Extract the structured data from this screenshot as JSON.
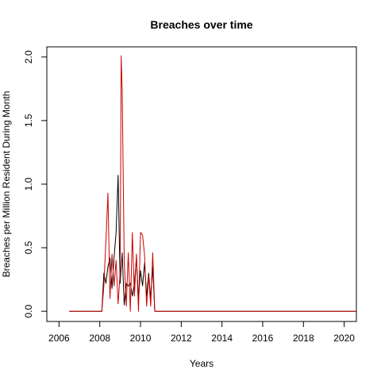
{
  "chart_data": {
    "type": "line",
    "title": "Breaches over time",
    "xlabel": "Years",
    "ylabel": "Breaches per Million Resident During Month",
    "xlim": [
      2005.4,
      2020.6
    ],
    "ylim": [
      -0.08,
      2.08
    ],
    "x_ticks": [
      2006,
      2008,
      2010,
      2012,
      2014,
      2016,
      2018,
      2020
    ],
    "x_tick_labels": [
      "2006",
      "2008",
      "2010",
      "2012",
      "2014",
      "2016",
      "2018",
      "2020"
    ],
    "y_ticks": [
      0.0,
      0.5,
      1.0,
      1.5,
      2.0
    ],
    "y_tick_labels": [
      "0.0",
      "0.5",
      "1.0",
      "1.5",
      "2.0"
    ],
    "grid": false,
    "series": [
      {
        "color": "#000000",
        "points": [
          [
            2006.5,
            0.0
          ],
          [
            2008.1,
            0.0
          ],
          [
            2008.2,
            0.3
          ],
          [
            2008.3,
            0.22
          ],
          [
            2008.4,
            0.35
          ],
          [
            2008.5,
            0.42
          ],
          [
            2008.6,
            0.18
          ],
          [
            2008.7,
            0.42
          ],
          [
            2008.8,
            0.62
          ],
          [
            2008.9,
            1.07
          ],
          [
            2009.0,
            0.22
          ],
          [
            2009.1,
            0.46
          ],
          [
            2009.2,
            0.05
          ],
          [
            2009.3,
            0.22
          ],
          [
            2009.4,
            0.2
          ],
          [
            2009.5,
            0.22
          ],
          [
            2009.6,
            0.12
          ],
          [
            2009.7,
            0.22
          ],
          [
            2009.8,
            0.42
          ],
          [
            2009.9,
            0.1
          ],
          [
            2010.0,
            0.32
          ],
          [
            2010.1,
            0.2
          ],
          [
            2010.2,
            0.38
          ],
          [
            2010.3,
            0.12
          ],
          [
            2010.4,
            0.3
          ],
          [
            2010.5,
            0.1
          ],
          [
            2010.6,
            0.35
          ],
          [
            2010.7,
            0.0
          ],
          [
            2020.6,
            0.0
          ]
        ]
      },
      {
        "color": "#cc0000",
        "points": [
          [
            2006.5,
            0.0
          ],
          [
            2008.1,
            0.0
          ],
          [
            2008.2,
            0.2
          ],
          [
            2008.3,
            0.55
          ],
          [
            2008.4,
            0.93
          ],
          [
            2008.5,
            0.1
          ],
          [
            2008.6,
            0.45
          ],
          [
            2008.7,
            0.2
          ],
          [
            2008.8,
            0.4
          ],
          [
            2008.9,
            0.06
          ],
          [
            2009.0,
            0.3
          ],
          [
            2009.05,
            2.01
          ],
          [
            2009.1,
            1.75
          ],
          [
            2009.2,
            0.4
          ],
          [
            2009.3,
            0.04
          ],
          [
            2009.4,
            0.46
          ],
          [
            2009.5,
            0.0
          ],
          [
            2009.6,
            0.62
          ],
          [
            2009.7,
            0.12
          ],
          [
            2009.8,
            0.45
          ],
          [
            2009.9,
            0.0
          ],
          [
            2010.0,
            0.62
          ],
          [
            2010.1,
            0.6
          ],
          [
            2010.2,
            0.44
          ],
          [
            2010.3,
            0.04
          ],
          [
            2010.4,
            0.28
          ],
          [
            2010.5,
            0.04
          ],
          [
            2010.6,
            0.46
          ],
          [
            2010.7,
            0.0
          ],
          [
            2020.6,
            0.0
          ]
        ]
      }
    ]
  }
}
